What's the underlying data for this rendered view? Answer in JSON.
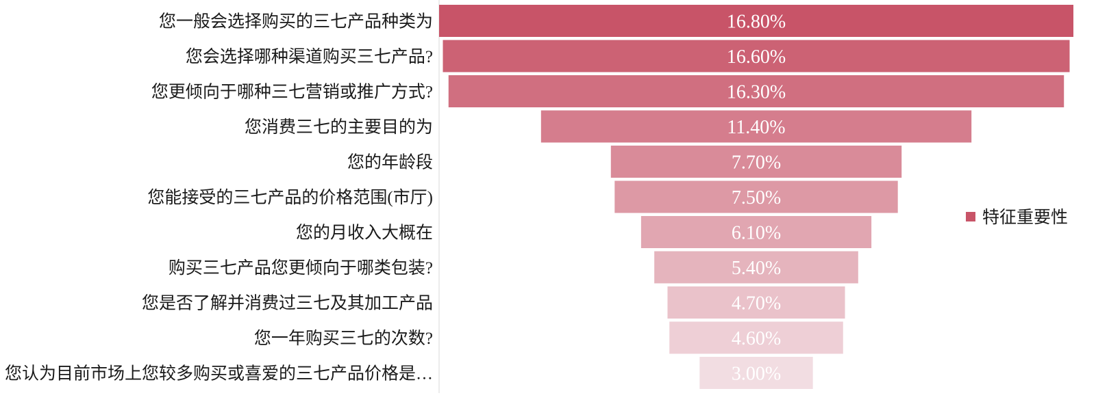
{
  "chart_data": {
    "type": "bar",
    "orientation": "horizontal-funnel",
    "categories": [
      "您一般会选择购买的三七产品种类为",
      "您会选择哪种渠道购买三七产品?",
      "您更倾向于哪种三七营销或推广方式?",
      "您消费三七的主要目的为",
      "您的年龄段",
      "您能接受的三七产品的价格范围(市厅)",
      "您的月收入大概在",
      "购买三七产品您更倾向于哪类包装?",
      "您是否了解并消费过三七及其加工产品",
      "您一年购买三七的次数?",
      "您认为目前市场上您较多购买或喜爱的三七产品价格是…"
    ],
    "series": [
      {
        "name": "特征重要性",
        "values": [
          16.8,
          16.6,
          16.3,
          11.4,
          7.7,
          7.5,
          6.1,
          5.4,
          4.7,
          4.6,
          3.0
        ],
        "value_labels": [
          "16.80%",
          "16.60%",
          "16.30%",
          "11.40%",
          "7.70%",
          "7.50%",
          "6.10%",
          "5.40%",
          "4.70%",
          "4.60%",
          "3.00%"
        ]
      }
    ],
    "value_unit": "%",
    "legend": {
      "position": "right",
      "label": "特征重要性"
    },
    "colors": {
      "top": "#c85468",
      "bottom": "#f2dde2",
      "legend_swatch": "#c85468",
      "axis_line": "#d9d9d9"
    },
    "grid": false
  }
}
